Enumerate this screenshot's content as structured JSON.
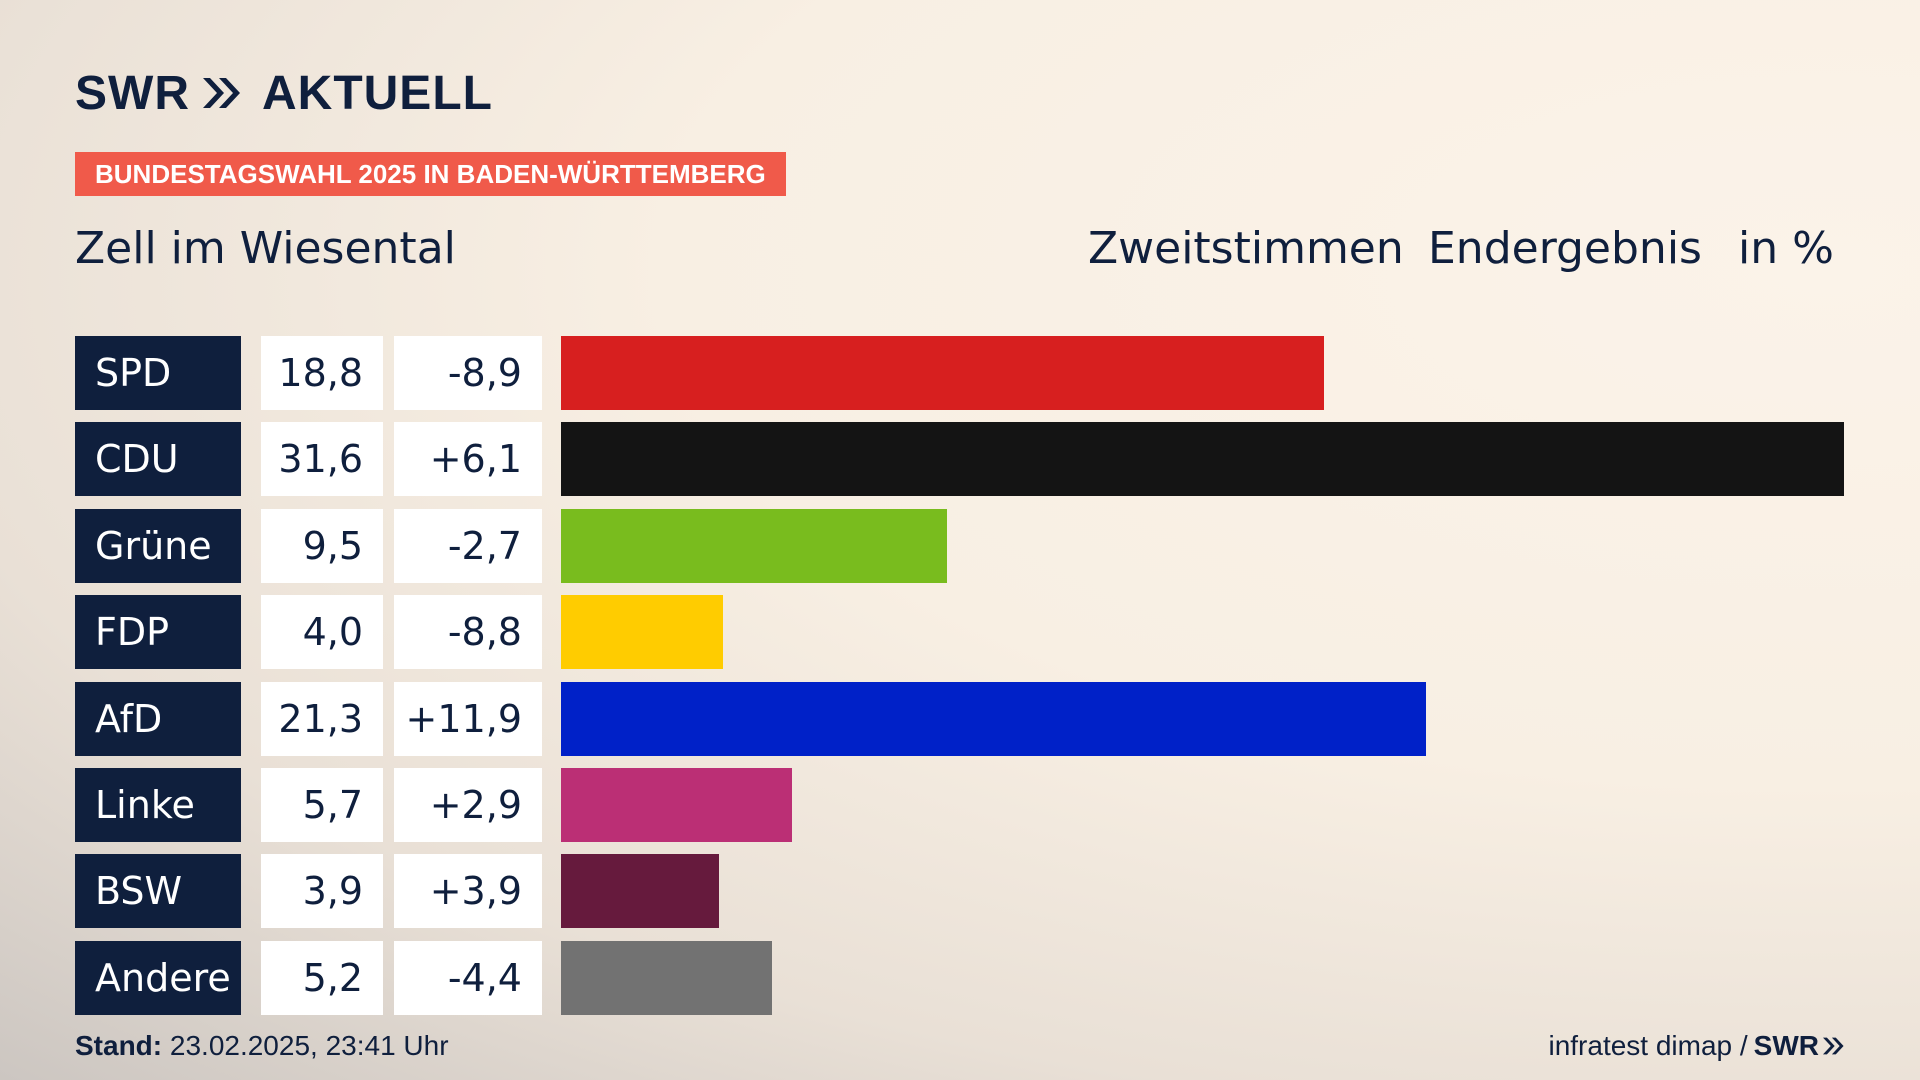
{
  "header": {
    "logo_left": "SWR",
    "logo_right": "AKTUELL",
    "tag": "BUNDESTAGSWAHL 2025 IN BADEN-WÜRTTEMBERG",
    "region": "Zell im Wiesental",
    "col_zweitstimmen": "Zweitstimmen",
    "col_endergebnis": "Endergebnis",
    "col_unit": "in %"
  },
  "chart_data": {
    "type": "bar",
    "orientation": "horizontal",
    "categories": [
      "SPD",
      "CDU",
      "Grüne",
      "FDP",
      "AfD",
      "Linke",
      "BSW",
      "Andere"
    ],
    "values": [
      18.8,
      31.6,
      9.5,
      4.0,
      21.3,
      5.7,
      3.9,
      5.2
    ],
    "value_labels": [
      "18,8",
      "31,6",
      "9,5",
      "4,0",
      "21,3",
      "5,7",
      "3,9",
      "5,2"
    ],
    "diff_labels": [
      "-8,9",
      "+6,1",
      "-2,7",
      "-8,8",
      "+11,9",
      "+2,9",
      "+3,9",
      "-4,4"
    ],
    "colors": [
      "#d71f1f",
      "#141414",
      "#79bc1e",
      "#ffcc00",
      "#0021c8",
      "#bb2f75",
      "#661a3d",
      "#727272"
    ],
    "xlim": [
      0,
      31.6
    ]
  },
  "footer": {
    "stand_label": "Stand:",
    "stand_value": "23.02.2025, 23:41 Uhr",
    "source": "infratest dimap /",
    "brand": "SWR"
  },
  "colors": {
    "navy": "#0f1f3d",
    "tag_red": "#f05a4a"
  }
}
